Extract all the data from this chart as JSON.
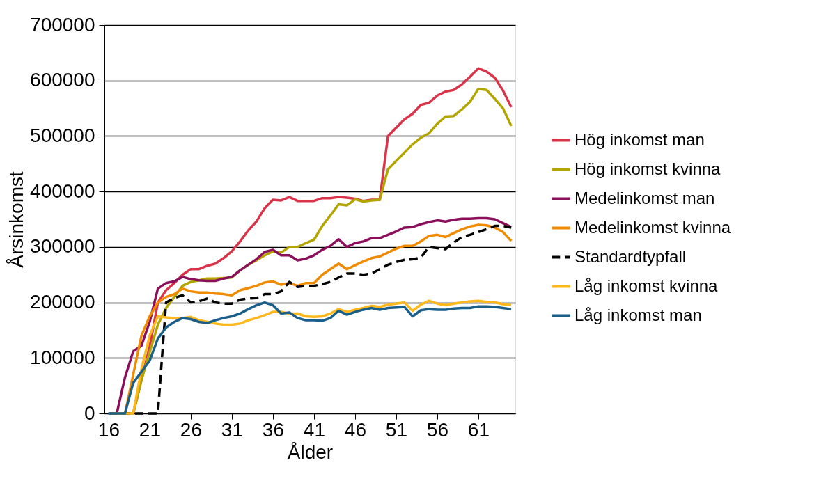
{
  "chart_data": {
    "type": "line",
    "xlabel": "Ålder",
    "ylabel": "Årsinkomst",
    "x": [
      16,
      17,
      18,
      19,
      20,
      21,
      22,
      23,
      24,
      25,
      26,
      27,
      28,
      29,
      30,
      31,
      32,
      33,
      34,
      35,
      36,
      37,
      38,
      39,
      40,
      41,
      42,
      43,
      44,
      45,
      46,
      47,
      48,
      49,
      50,
      51,
      52,
      53,
      54,
      55,
      56,
      57,
      58,
      59,
      60,
      61,
      62,
      63,
      64,
      65
    ],
    "xlim": [
      15.5,
      65.5
    ],
    "xticks": [
      16,
      21,
      26,
      31,
      36,
      41,
      46,
      51,
      56,
      61
    ],
    "ylim": [
      0,
      700000
    ],
    "yticks": [
      0,
      100000,
      200000,
      300000,
      400000,
      500000,
      600000,
      700000
    ],
    "grid": "y",
    "legend": "right",
    "marker": "none",
    "series": [
      {
        "name": "Hög inkomst man",
        "color": "#d9344a",
        "line_style": "solid",
        "values": [
          null,
          null,
          null,
          0,
          60000,
          120000,
          200000,
          222000,
          235000,
          250000,
          260000,
          260000,
          266000,
          270000,
          280000,
          292000,
          310000,
          330000,
          346000,
          370000,
          385000,
          384000,
          390000,
          383000,
          383000,
          383000,
          388000,
          388000,
          390000,
          389000,
          387000,
          383000,
          385000,
          385000,
          500000,
          515000,
          530000,
          540000,
          556000,
          560000,
          573000,
          580000,
          583000,
          593000,
          607000,
          622000,
          616000,
          605000,
          582000,
          552000
        ]
      },
      {
        "name": "Hög inkomst kvinna",
        "color": "#b3a500",
        "line_style": "solid",
        "values": [
          0,
          0,
          0,
          0,
          60000,
          110000,
          160000,
          190000,
          210000,
          230000,
          237000,
          240000,
          243000,
          243000,
          244000,
          245000,
          258000,
          268000,
          276000,
          285000,
          292000,
          290000,
          300000,
          300000,
          307000,
          313000,
          338000,
          357000,
          377000,
          375000,
          386000,
          382000,
          384000,
          385000,
          440000,
          455000,
          470000,
          485000,
          497000,
          505000,
          522000,
          535000,
          536000,
          548000,
          562000,
          585000,
          583000,
          567000,
          550000,
          518000
        ]
      },
      {
        "name": "Medelinkomst man",
        "color": "#8b0f5b",
        "line_style": "solid",
        "values": [
          0,
          0,
          65000,
          112000,
          122000,
          165000,
          225000,
          235000,
          238000,
          246000,
          242000,
          240000,
          239000,
          239000,
          243000,
          246000,
          258000,
          268000,
          278000,
          291000,
          295000,
          285000,
          285000,
          276000,
          279000,
          285000,
          295000,
          302000,
          314000,
          300000,
          307000,
          310000,
          316000,
          316000,
          322000,
          328000,
          335000,
          336000,
          341000,
          345000,
          348000,
          346000,
          349000,
          351000,
          351000,
          352000,
          352000,
          350000,
          343000,
          336000
        ]
      },
      {
        "name": "Medelinkomst kvinna",
        "color": "#f08a00",
        "line_style": "solid",
        "values": [
          0,
          0,
          0,
          70000,
          140000,
          175000,
          200000,
          210000,
          215000,
          225000,
          220000,
          218000,
          218000,
          216000,
          215000,
          213000,
          222000,
          226000,
          230000,
          236000,
          238000,
          232000,
          235000,
          230000,
          235000,
          235000,
          250000,
          260000,
          270000,
          260000,
          267000,
          274000,
          280000,
          283000,
          290000,
          297000,
          302000,
          302000,
          310000,
          320000,
          322000,
          318000,
          325000,
          332000,
          337000,
          340000,
          339000,
          335000,
          327000,
          311000
        ]
      },
      {
        "name": "Standardtypfall",
        "color": "#000000",
        "line_style": "dashed",
        "values": [
          0,
          0,
          0,
          0,
          0,
          0,
          0,
          200000,
          208000,
          213000,
          200000,
          202000,
          207000,
          200000,
          198000,
          198000,
          205000,
          207000,
          208000,
          215000,
          215000,
          220000,
          237000,
          228000,
          230000,
          230000,
          233000,
          237000,
          245000,
          252000,
          252000,
          250000,
          252000,
          260000,
          268000,
          273000,
          277000,
          278000,
          281000,
          300000,
          298000,
          296000,
          308000,
          318000,
          322000,
          327000,
          332000,
          338000,
          338000,
          335000
        ]
      },
      {
        "name": "Låg inkomst kvinna",
        "color": "#ffb81c",
        "line_style": "solid",
        "values": [
          0,
          0,
          0,
          0,
          80000,
          140000,
          175000,
          173000,
          172000,
          172000,
          174000,
          168000,
          165000,
          162000,
          160000,
          160000,
          162000,
          168000,
          172000,
          177000,
          183000,
          183000,
          180000,
          180000,
          175000,
          174000,
          175000,
          180000,
          188000,
          183000,
          187000,
          190000,
          194000,
          192000,
          196000,
          198000,
          200000,
          185000,
          196000,
          203000,
          198000,
          195000,
          198000,
          200000,
          202000,
          203000,
          201000,
          200000,
          197000,
          195000
        ]
      },
      {
        "name": "Låg inkomst man",
        "color": "#1a5e8a",
        "line_style": "solid",
        "values": [
          0,
          0,
          0,
          55000,
          75000,
          95000,
          135000,
          155000,
          165000,
          172000,
          170000,
          165000,
          163000,
          168000,
          172000,
          175000,
          180000,
          188000,
          195000,
          200000,
          195000,
          180000,
          182000,
          172000,
          168000,
          168000,
          167000,
          172000,
          185000,
          178000,
          183000,
          187000,
          190000,
          187000,
          190000,
          191000,
          192000,
          175000,
          186000,
          188000,
          187000,
          187000,
          189000,
          190000,
          190000,
          193000,
          193000,
          192000,
          190000,
          188000
        ]
      }
    ]
  }
}
